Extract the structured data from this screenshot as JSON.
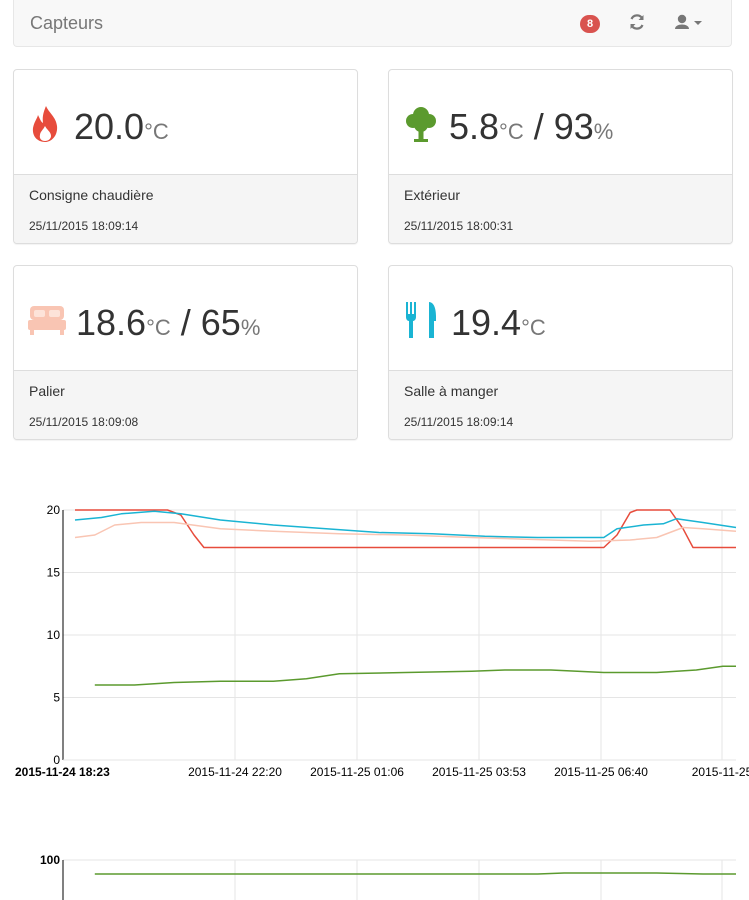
{
  "navbar": {
    "title": "Capteurs",
    "notification_count": "8",
    "refresh_icon": "refresh-icon",
    "user_icon": "user-dropdown-icon"
  },
  "sensors": [
    {
      "name": "Consigne chaudière",
      "timestamp": "25/11/2015 18:09:14",
      "value1": "20.0",
      "unit1": "°C",
      "separator": "",
      "value2": "",
      "unit2": "",
      "icon": "flame-icon",
      "color": "#e74c3c"
    },
    {
      "name": "Extérieur",
      "timestamp": "25/11/2015 18:00:31",
      "value1": "5.8",
      "unit1": "°C",
      "separator": " / ",
      "value2": "93",
      "unit2": "%",
      "icon": "tree-icon",
      "color": "#5b9a2e"
    },
    {
      "name": "Palier",
      "timestamp": "25/11/2015 18:09:08",
      "value1": "18.6",
      "unit1": "°C",
      "separator": " / ",
      "value2": "65",
      "unit2": "%",
      "icon": "bed-icon",
      "color": "#f9c5b3"
    },
    {
      "name": "Salle à manger",
      "timestamp": "25/11/2015 18:09:14",
      "value1": "19.4",
      "unit1": "°C",
      "separator": "",
      "value2": "",
      "unit2": "",
      "icon": "fork-knife-icon",
      "color": "#1ab4d3"
    }
  ],
  "chart_data": [
    {
      "type": "line",
      "title": "",
      "ylim": [
        0,
        20
      ],
      "yticks": [
        "20",
        "15",
        "10",
        "5",
        "0"
      ],
      "xticks": [
        "2015-11-24 18:23",
        "2015-11-24 22:20",
        "2015-11-25 01:06",
        "2015-11-25 03:53",
        "2015-11-25 06:40",
        "2015-11-25"
      ],
      "xlim": [
        0,
        100
      ],
      "grid": true,
      "series": [
        {
          "color": "#e74c3c",
          "points": [
            [
              0,
              20
            ],
            [
              14,
              20
            ],
            [
              16,
              19.6
            ],
            [
              18,
              18
            ],
            [
              19.5,
              17
            ],
            [
              80,
              17
            ],
            [
              82,
              18
            ],
            [
              84,
              19.8
            ],
            [
              85,
              20
            ],
            [
              90,
              20
            ],
            [
              92,
              18.5
            ],
            [
              93.5,
              17
            ],
            [
              100,
              17
            ]
          ]
        },
        {
          "color": "#1ab4d3",
          "points": [
            [
              0,
              19.2
            ],
            [
              4,
              19.4
            ],
            [
              7,
              19.7
            ],
            [
              12,
              19.9
            ],
            [
              16,
              19.7
            ],
            [
              22,
              19.2
            ],
            [
              30,
              18.8
            ],
            [
              38,
              18.5
            ],
            [
              46,
              18.2
            ],
            [
              54,
              18.1
            ],
            [
              62,
              17.9
            ],
            [
              70,
              17.8
            ],
            [
              80,
              17.8
            ],
            [
              82,
              18.5
            ],
            [
              86,
              18.8
            ],
            [
              89,
              18.9
            ],
            [
              91,
              19.3
            ],
            [
              95,
              19
            ],
            [
              100,
              18.6
            ]
          ]
        },
        {
          "color": "#f9c5b3",
          "points": [
            [
              0,
              17.8
            ],
            [
              3,
              18
            ],
            [
              6,
              18.8
            ],
            [
              10,
              19
            ],
            [
              15,
              19
            ],
            [
              22,
              18.5
            ],
            [
              30,
              18.3
            ],
            [
              40,
              18.1
            ],
            [
              50,
              18
            ],
            [
              60,
              17.8
            ],
            [
              72,
              17.6
            ],
            [
              78,
              17.5
            ],
            [
              84,
              17.6
            ],
            [
              88,
              17.8
            ],
            [
              92,
              18.6
            ],
            [
              95,
              18.5
            ],
            [
              100,
              18.3
            ]
          ]
        },
        {
          "color": "#5b9a2e",
          "points": [
            [
              3,
              6
            ],
            [
              9,
              6
            ],
            [
              15,
              6.2
            ],
            [
              22,
              6.3
            ],
            [
              30,
              6.3
            ],
            [
              35,
              6.5
            ],
            [
              40,
              6.9
            ],
            [
              50,
              7
            ],
            [
              60,
              7.1
            ],
            [
              65,
              7.2
            ],
            [
              72,
              7.2
            ],
            [
              80,
              7
            ],
            [
              88,
              7
            ],
            [
              94,
              7.2
            ],
            [
              98,
              7.5
            ],
            [
              100,
              7.5
            ]
          ]
        }
      ]
    },
    {
      "type": "line",
      "title": "",
      "yticks": [
        "100"
      ],
      "series": [
        {
          "color": "#5b9a2e",
          "points": [
            [
              3,
              86
            ],
            [
              70,
              86
            ],
            [
              74,
              87
            ],
            [
              82,
              87
            ],
            [
              88,
              87
            ],
            [
              95,
              86
            ],
            [
              100,
              86
            ]
          ]
        }
      ]
    }
  ]
}
